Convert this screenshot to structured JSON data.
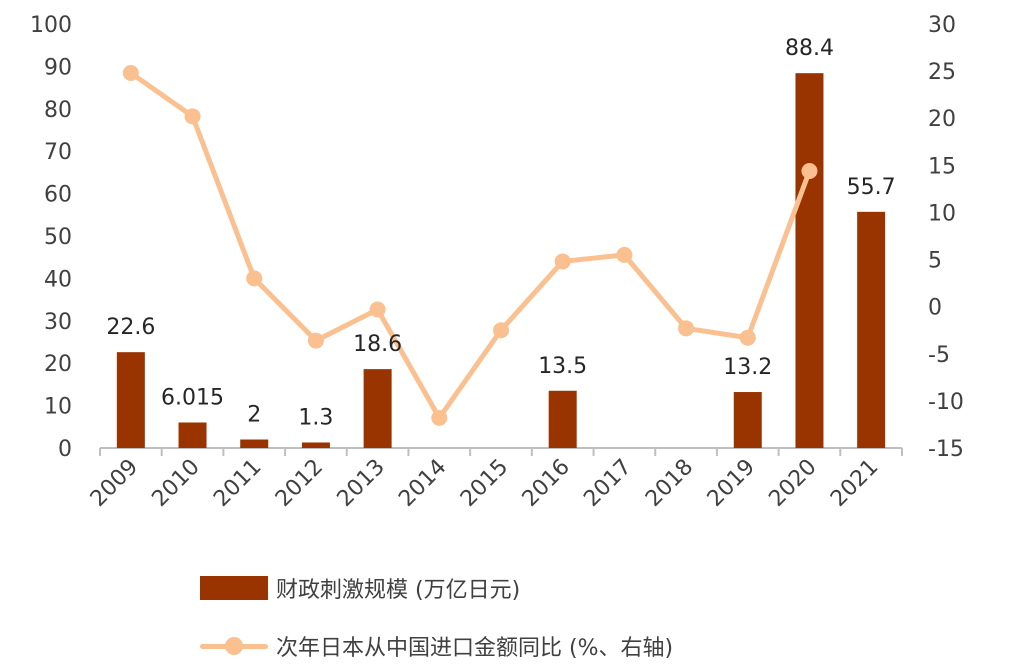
{
  "chart_data": {
    "type": "bar",
    "categories": [
      "2009",
      "2010",
      "2011",
      "2012",
      "2013",
      "2014",
      "2015",
      "2016",
      "2017",
      "2018",
      "2019",
      "2020",
      "2021"
    ],
    "series": [
      {
        "name": "财政刺激规模 (万亿日元)",
        "type": "bar",
        "axis": "left",
        "color": "#993300",
        "values": [
          22.6,
          6.015,
          2,
          1.3,
          18.6,
          null,
          null,
          13.5,
          null,
          null,
          13.2,
          88.4,
          55.7
        ],
        "labels": [
          "22.6",
          "6.015",
          "2",
          "1.3",
          "18.6",
          "",
          "",
          "13.5",
          "",
          "",
          "13.2",
          "88.4",
          "55.7"
        ]
      },
      {
        "name": "次年日本从中国进口金额同比 (%、右轴)",
        "type": "line",
        "axis": "right",
        "color": "#FAC090",
        "values": [
          24.8,
          20.2,
          3.0,
          -3.6,
          -0.3,
          -11.8,
          -2.5,
          4.8,
          5.5,
          -2.3,
          -3.3,
          14.4,
          null
        ]
      }
    ],
    "y_left": {
      "min": 0,
      "max": 100,
      "ticks": [
        "0",
        "10",
        "20",
        "30",
        "40",
        "50",
        "60",
        "70",
        "80",
        "90",
        "100"
      ]
    },
    "y_right": {
      "min": -15,
      "max": 30,
      "ticks": [
        "-15",
        "-10",
        "-5",
        "0",
        "5",
        "10",
        "15",
        "20",
        "25",
        "30"
      ]
    },
    "legend_position": "bottom",
    "grid": false
  }
}
